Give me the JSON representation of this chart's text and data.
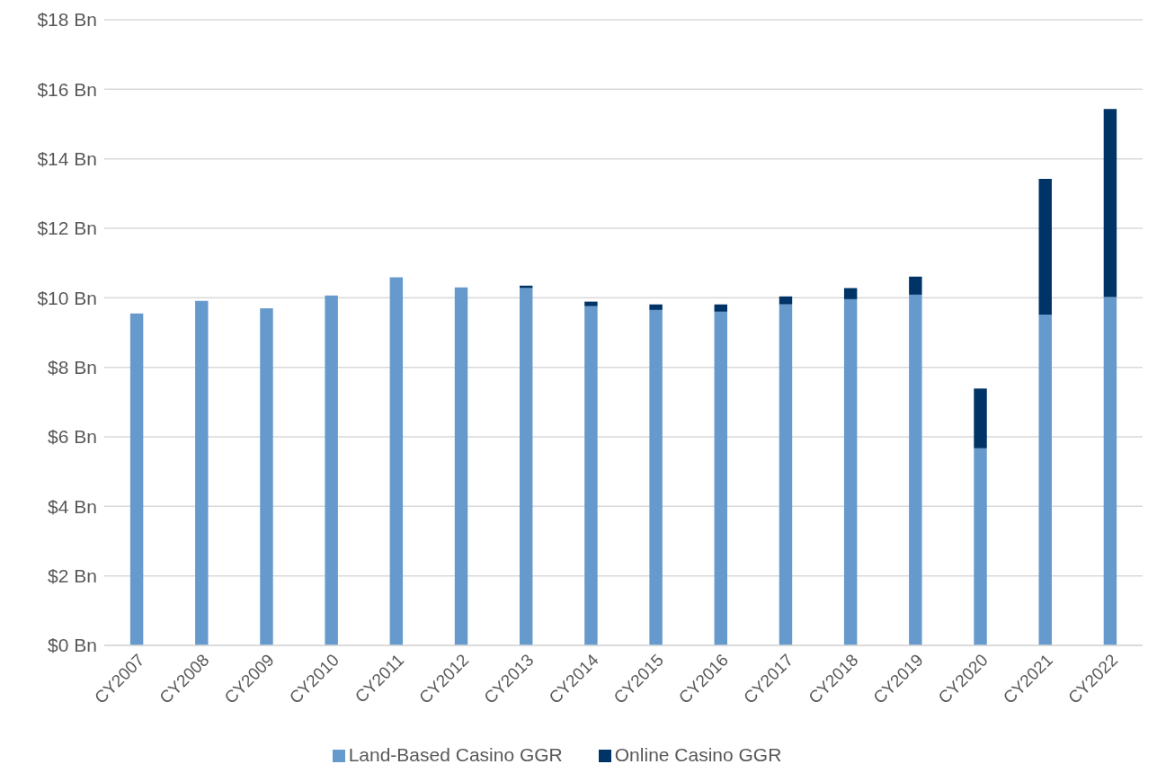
{
  "chart_data": {
    "type": "bar",
    "stacked": true,
    "categories": [
      "CY2007",
      "CY2008",
      "CY2009",
      "CY2010",
      "CY2011",
      "CY2012",
      "CY2013",
      "CY2014",
      "CY2015",
      "CY2016",
      "CY2017",
      "CY2018",
      "CY2019",
      "CY2020",
      "CY2021",
      "CY2022"
    ],
    "series": [
      {
        "name": "Land-Based Casino GGR",
        "color": "#6699cc",
        "values": [
          9.55,
          9.91,
          9.7,
          10.07,
          10.59,
          10.3,
          10.28,
          9.76,
          9.65,
          9.6,
          9.81,
          9.96,
          10.09,
          5.67,
          9.52,
          10.02
        ]
      },
      {
        "name": "Online Casino GGR",
        "color": "#003366",
        "values": [
          null,
          null,
          null,
          null,
          null,
          null,
          0.07,
          0.13,
          0.16,
          0.21,
          0.23,
          0.32,
          0.52,
          1.72,
          3.9,
          5.41
        ]
      }
    ],
    "ylim": [
      0,
      18
    ],
    "yticks": [
      {
        "value": 0,
        "label": "$0 Bn"
      },
      {
        "value": 2,
        "label": "$2 Bn"
      },
      {
        "value": 4,
        "label": "$4 Bn"
      },
      {
        "value": 6,
        "label": "$6 Bn"
      },
      {
        "value": 8,
        "label": "$8 Bn"
      },
      {
        "value": 10,
        "label": "$10 Bn"
      },
      {
        "value": 12,
        "label": "$12 Bn"
      },
      {
        "value": 14,
        "label": "$14 Bn"
      },
      {
        "value": 16,
        "label": "$16 Bn"
      },
      {
        "value": 18,
        "label": "$18 Bn"
      }
    ],
    "grid": "y",
    "legend": "bottom"
  }
}
